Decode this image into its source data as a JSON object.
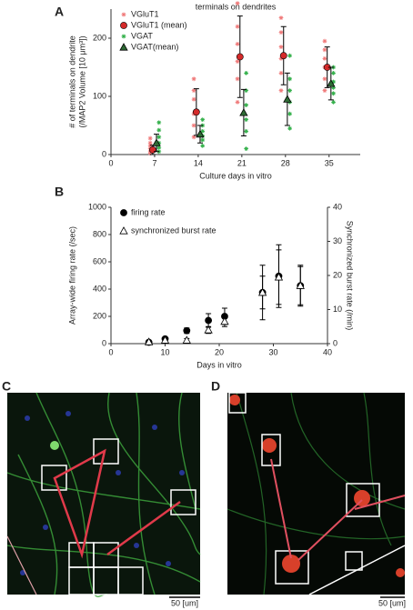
{
  "chart_data": [
    {
      "type": "scatter",
      "title": "terminals on dendrites",
      "xlabel": "Culture days in vitro",
      "ylabel": [
        "# of terminals on dendrite",
        "(/MAP2 Volume [10 μm³])"
      ],
      "xlim": [
        0,
        40
      ],
      "xticks": [
        0,
        7,
        14,
        21,
        28,
        35
      ],
      "ylim": [
        0,
        250
      ],
      "yticks": [
        0,
        100,
        200
      ],
      "legend": "upper left",
      "series": [
        {
          "name": "VGluT1",
          "color": "#f07a7a",
          "marker": "star",
          "x": [
            6.3,
            6.3,
            6.3,
            6.3,
            6.3,
            6.3,
            13.3,
            13.3,
            13.3,
            13.3,
            13.3,
            13.3,
            20.3,
            20.3,
            20.3,
            20.3,
            20.3,
            20.3,
            27.3,
            27.3,
            27.3,
            27.3,
            27.3,
            27.3,
            34.3,
            34.3,
            34.3,
            34.3,
            34.3,
            34.3
          ],
          "values": [
            2,
            5,
            10,
            15,
            20,
            28,
            30,
            50,
            70,
            95,
            110,
            130,
            90,
            130,
            160,
            190,
            220,
            260,
            110,
            140,
            165,
            185,
            210,
            235,
            110,
            130,
            150,
            165,
            180,
            195
          ]
        },
        {
          "name": "VGluT1 (mean)",
          "color": "#d42a2a",
          "marker": "circle",
          "x": [
            6.7,
            13.7,
            20.7,
            27.7,
            34.7
          ],
          "values": [
            8,
            73,
            168,
            170,
            150
          ],
          "errors": [
            8,
            40,
            70,
            50,
            35
          ]
        },
        {
          "name": "VGAT",
          "color": "#33b04a",
          "marker": "star",
          "x": [
            7.7,
            7.7,
            7.7,
            7.7,
            7.7,
            7.7,
            14.7,
            14.7,
            14.7,
            14.7,
            14.7,
            14.7,
            21.7,
            21.7,
            21.7,
            21.7,
            21.7,
            21.7,
            28.7,
            28.7,
            28.7,
            28.7,
            28.7,
            28.7,
            35.7,
            35.7,
            35.7,
            35.7,
            35.7,
            35.7
          ],
          "values": [
            5,
            12,
            20,
            30,
            42,
            55,
            15,
            25,
            32,
            40,
            50,
            60,
            10,
            40,
            60,
            85,
            110,
            140,
            45,
            70,
            90,
            110,
            130,
            170,
            90,
            105,
            115,
            125,
            140,
            150
          ]
        },
        {
          "name": "VGAT(mean)",
          "color": "#2f6b35",
          "marker": "triangle",
          "x": [
            7.3,
            14.3,
            21.3,
            28.3,
            35.3
          ],
          "values": [
            20,
            35,
            72,
            95,
            122
          ],
          "errors": [
            15,
            15,
            40,
            45,
            28
          ]
        }
      ]
    },
    {
      "type": "scatter",
      "xlabel": "Days in vitro",
      "ylabel": [
        "Array-wide firing rate (/sec)"
      ],
      "y2label": "Synchronized burst rate (/min)",
      "xlim": [
        0,
        40
      ],
      "xticks": [
        0,
        10,
        20,
        30,
        40
      ],
      "ylim": [
        0,
        1000
      ],
      "yticks": [
        0,
        200,
        400,
        600,
        800,
        1000
      ],
      "y2lim": [
        0,
        40
      ],
      "y2ticks": [
        0,
        10,
        20,
        30,
        40
      ],
      "legend": "upper left",
      "series": [
        {
          "name": "firing rate",
          "color": "#000000",
          "marker": "circle",
          "axis": "y",
          "x": [
            7,
            10,
            14,
            18,
            21,
            28,
            31,
            35
          ],
          "values": [
            10,
            35,
            95,
            170,
            200,
            375,
            495,
            425
          ],
          "errors": [
            5,
            10,
            20,
            50,
            60,
            120,
            230,
            140
          ]
        },
        {
          "name": "synchronized burst rate",
          "color": "#000000",
          "marker": "open-triangle",
          "axis": "y2",
          "x": [
            7,
            10,
            14,
            18,
            21,
            28,
            31,
            35
          ],
          "values": [
            0.5,
            1,
            1,
            4,
            6.5,
            15,
            19.5,
            17
          ],
          "errors": [
            0.3,
            0.5,
            0.5,
            1,
            1.5,
            8,
            8,
            6
          ]
        }
      ]
    }
  ],
  "figure": {
    "panel_labels": [
      "A",
      "B",
      "C",
      "D"
    ],
    "scale_bar_labels": [
      "50 [um]",
      "50 [um]"
    ]
  }
}
